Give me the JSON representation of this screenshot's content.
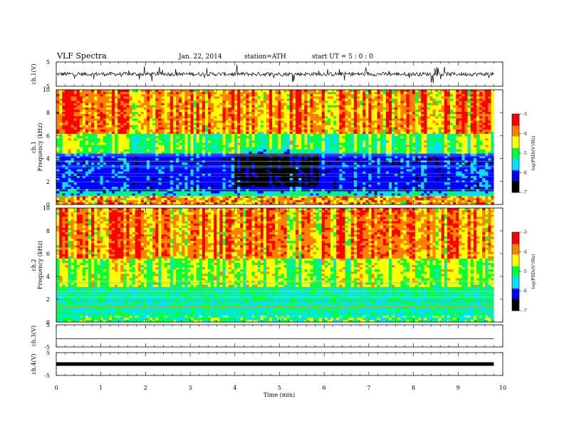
{
  "header": {
    "title": "VLF  Spectra",
    "date": "Jan. 22, 2014",
    "station": "station=ATH",
    "start": "start  UT =   5 : 0  : 0"
  },
  "chart_data": [
    {
      "type": "line",
      "panel": "ch1-waveform",
      "ylabel": "ch.1(V)",
      "yticks": [
        "5",
        "-5"
      ],
      "ylim": [
        -5,
        5
      ],
      "baseline": 0
    },
    {
      "type": "heatmap",
      "panel": "ch1-spectrogram",
      "ylabel_channel": "ch.1",
      "ylabel": "Frequency  (kHz)",
      "ylim": [
        0,
        10
      ],
      "yticks": [
        "0",
        "2",
        "4",
        "6",
        "8",
        "10"
      ],
      "colorbar": {
        "label": "log(PSD)(V²/Hz)",
        "ticks": [
          "-3",
          "-4",
          "-5",
          "-6",
          "-7"
        ],
        "range": [
          -7,
          -3
        ]
      }
    },
    {
      "type": "heatmap",
      "panel": "ch2-spectrogram",
      "ylabel_channel": "ch.2",
      "ylabel": "Frequency  (kHz)",
      "ylim": [
        0,
        10
      ],
      "yticks": [
        "0",
        "2",
        "4",
        "6",
        "8",
        "10"
      ],
      "colorbar": {
        "label": "log(PSD)(V²/Hz)",
        "ticks": [
          "-3",
          "-4",
          "-5",
          "-6",
          "-7"
        ],
        "range": [
          -7,
          -3
        ]
      }
    },
    {
      "type": "line",
      "panel": "ch3-waveform",
      "ylabel": "ch.3(V)",
      "yticks": [
        "5",
        "-5"
      ],
      "ylim": [
        -5,
        5
      ],
      "baseline": 0
    },
    {
      "type": "line",
      "panel": "ch4-waveform",
      "ylabel": "ch.4(V)",
      "yticks": [
        "5",
        "-5"
      ],
      "ylim": [
        -5,
        5
      ],
      "baseline": 0
    }
  ],
  "xaxis": {
    "label": "Time  (min)",
    "ticks": [
      "0",
      "1",
      "2",
      "3",
      "4",
      "5",
      "6",
      "7",
      "8",
      "9",
      "10"
    ],
    "xlim": [
      0,
      10
    ],
    "data_end": 9.8
  },
  "colors": {
    "scale": [
      "#000000",
      "#0000ff",
      "#00e0ff",
      "#00ff40",
      "#ffff00",
      "#ff8000",
      "#ff0000",
      "#ffe0e0"
    ]
  }
}
